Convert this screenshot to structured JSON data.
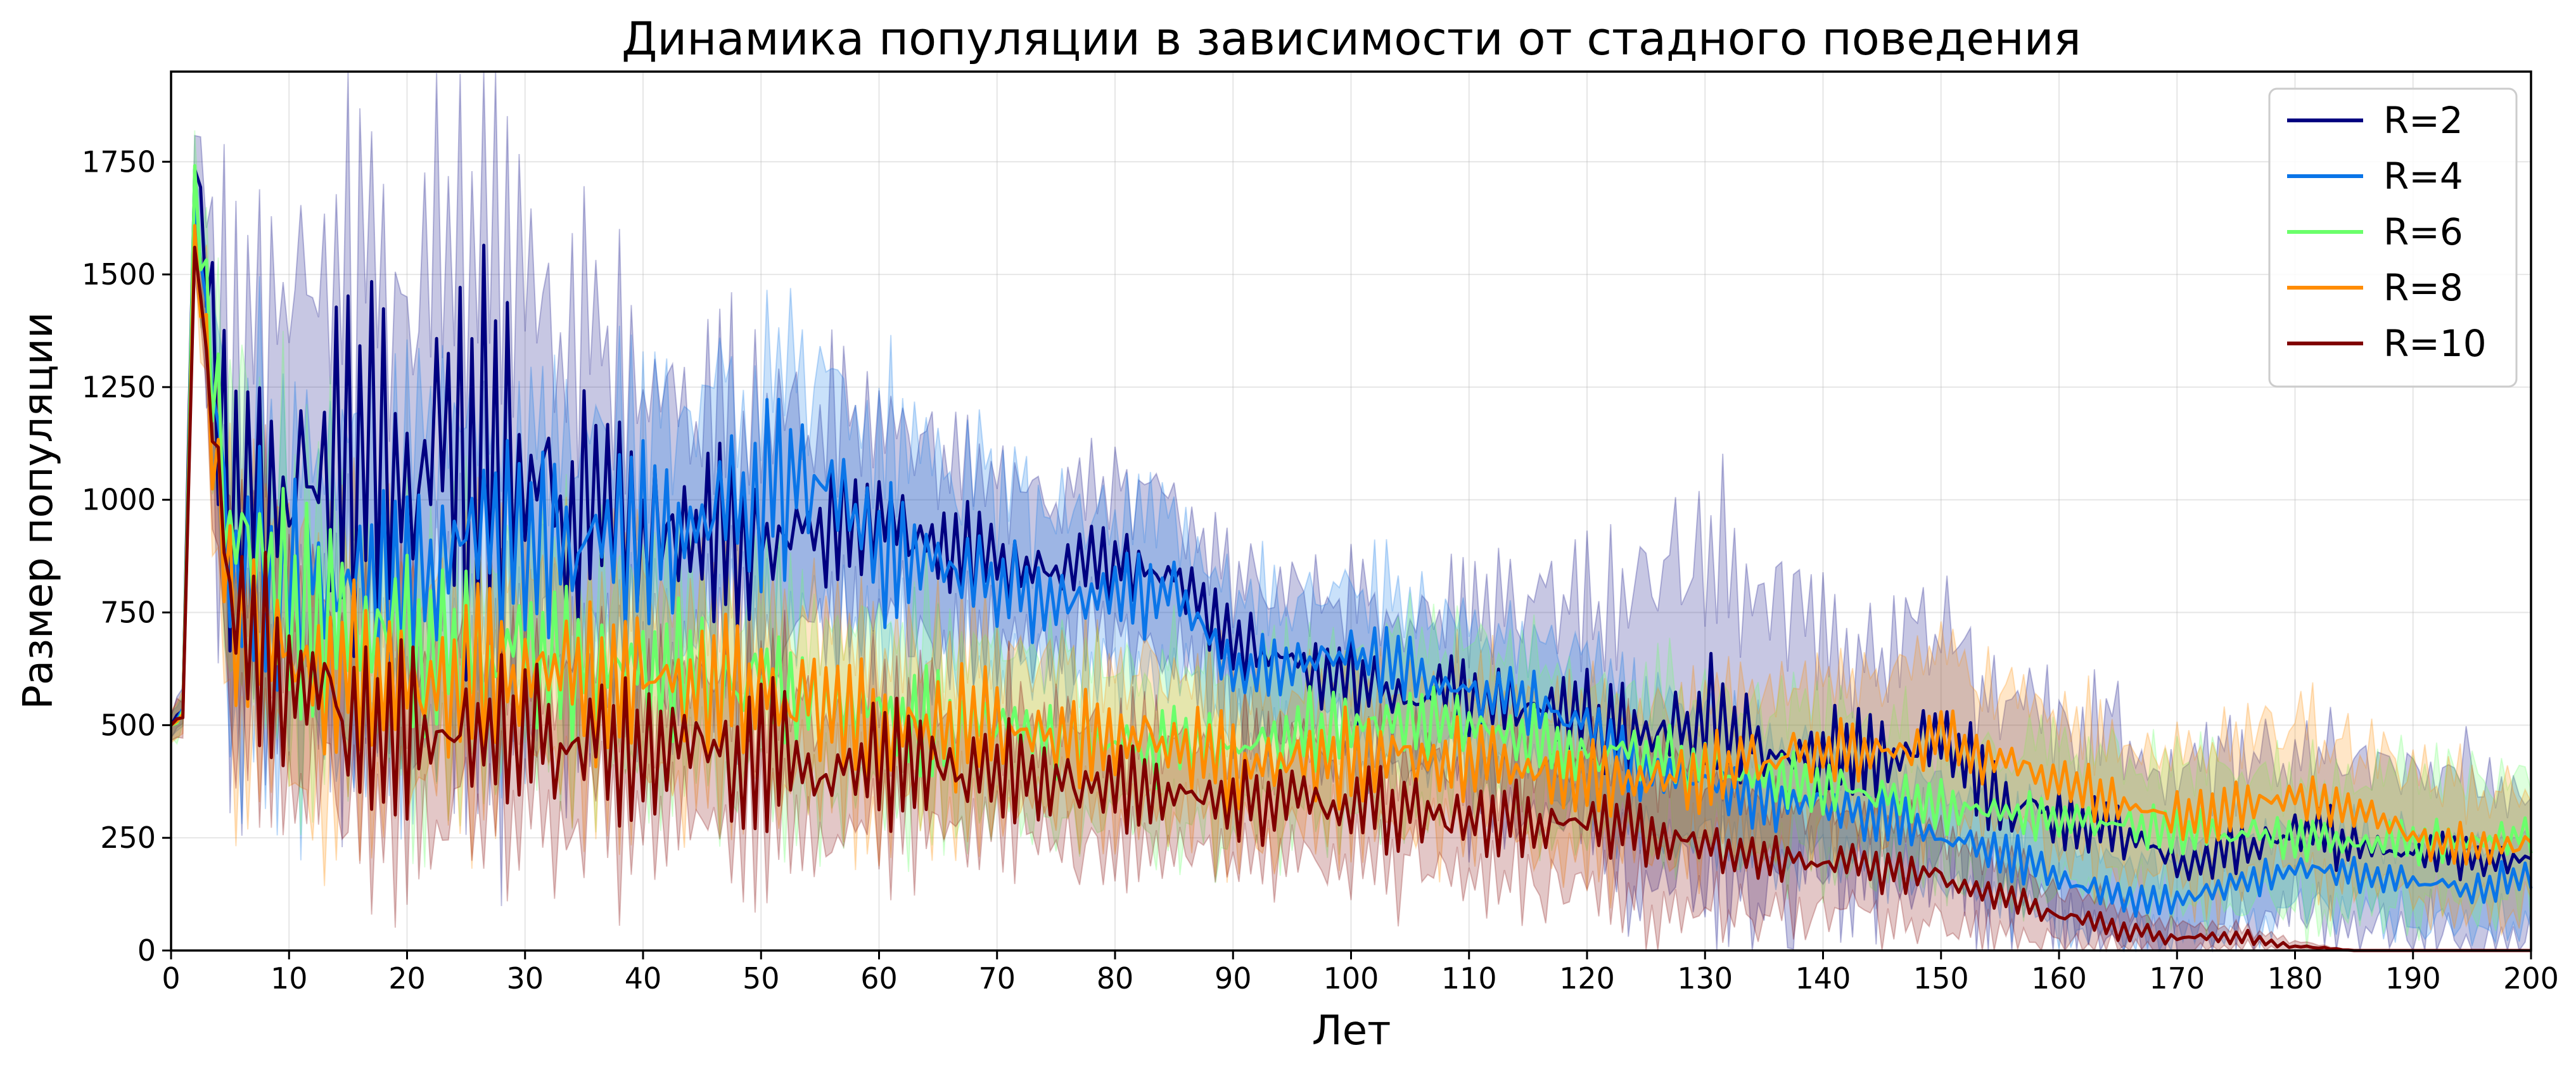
{
  "chart_data": {
    "type": "line",
    "title": "Динамика популяции в зависимости от стадного поведения",
    "xlabel": "Лет",
    "ylabel": "Размер популяции",
    "xlim": [
      0,
      200
    ],
    "ylim": [
      0,
      1950
    ],
    "xticks": [
      0,
      10,
      20,
      30,
      40,
      50,
      60,
      70,
      80,
      90,
      100,
      110,
      120,
      130,
      140,
      150,
      160,
      170,
      180,
      190,
      200
    ],
    "yticks": [
      0,
      250,
      500,
      750,
      1000,
      1250,
      1500,
      1750
    ],
    "grid": true,
    "legend_position": "top-right",
    "shaded_band": "min/max range around each series",
    "x": [
      0,
      1,
      2,
      5,
      10,
      15,
      20,
      25,
      30,
      35,
      40,
      45,
      50,
      55,
      60,
      65,
      70,
      75,
      80,
      85,
      90,
      95,
      100,
      105,
      110,
      115,
      120,
      125,
      130,
      135,
      140,
      145,
      150,
      155,
      160,
      165,
      170,
      175,
      180,
      185,
      190,
      195,
      200
    ],
    "series": [
      {
        "name": "R=2",
        "color": "#000080",
        "values": [
          500,
          540,
          1750,
          1020,
          1010,
          1050,
          1050,
          1070,
          1060,
          980,
          960,
          930,
          910,
          920,
          960,
          900,
          860,
          850,
          860,
          820,
          680,
          640,
          600,
          560,
          560,
          540,
          500,
          460,
          520,
          450,
          440,
          430,
          480,
          320,
          300,
          260,
          200,
          220,
          270,
          230,
          220,
          210,
          200
        ],
        "spread": [
          30,
          40,
          60,
          380,
          380,
          420,
          440,
          460,
          480,
          340,
          310,
          280,
          260,
          240,
          220,
          200,
          180,
          170,
          170,
          160,
          150,
          150,
          160,
          170,
          200,
          220,
          260,
          320,
          380,
          340,
          280,
          250,
          240,
          240,
          230,
          220,
          200,
          200,
          180,
          180,
          170,
          180,
          170
        ],
        "amp": [
          0,
          10,
          30,
          300,
          300,
          330,
          340,
          350,
          360,
          220,
          190,
          160,
          140,
          130,
          110,
          90,
          80,
          70,
          70,
          70,
          70,
          70,
          70,
          70,
          80,
          80,
          90,
          100,
          110,
          90,
          80,
          80,
          80,
          70,
          60,
          50,
          40,
          50,
          60,
          50,
          40,
          40,
          40
        ]
      },
      {
        "name": "R=4",
        "color": "#0a75e8",
        "values": [
          500,
          530,
          1650,
          900,
          800,
          820,
          840,
          880,
          900,
          900,
          920,
          960,
          1000,
          1050,
          900,
          860,
          820,
          780,
          780,
          800,
          620,
          640,
          650,
          620,
          580,
          560,
          500,
          400,
          380,
          330,
          320,
          300,
          260,
          220,
          160,
          120,
          110,
          150,
          180,
          170,
          150,
          140,
          170
        ],
        "spread": [
          30,
          40,
          60,
          300,
          300,
          300,
          280,
          260,
          250,
          240,
          240,
          250,
          260,
          270,
          240,
          220,
          200,
          180,
          170,
          170,
          160,
          150,
          150,
          150,
          150,
          150,
          150,
          140,
          140,
          130,
          120,
          110,
          110,
          100,
          100,
          90,
          90,
          90,
          90,
          90,
          90,
          90,
          90
        ],
        "amp": [
          0,
          10,
          30,
          200,
          190,
          180,
          180,
          180,
          180,
          170,
          160,
          160,
          160,
          150,
          130,
          110,
          90,
          80,
          70,
          70,
          60,
          60,
          60,
          60,
          60,
          60,
          60,
          60,
          60,
          50,
          50,
          50,
          40,
          40,
          40,
          30,
          30,
          30,
          30,
          30,
          30,
          30,
          30
        ]
      },
      {
        "name": "R=6",
        "color": "#6bff6b",
        "values": [
          500,
          520,
          1720,
          900,
          780,
          720,
          680,
          660,
          650,
          640,
          620,
          600,
          580,
          560,
          520,
          500,
          490,
          480,
          460,
          450,
          440,
          480,
          500,
          520,
          500,
          470,
          440,
          430,
          400,
          380,
          360,
          340,
          320,
          310,
          290,
          280,
          270,
          260,
          250,
          250,
          240,
          250,
          260
        ],
        "spread": [
          30,
          40,
          60,
          280,
          260,
          240,
          220,
          210,
          200,
          200,
          190,
          190,
          190,
          190,
          190,
          190,
          180,
          180,
          170,
          170,
          170,
          170,
          170,
          160,
          160,
          160,
          160,
          160,
          160,
          150,
          150,
          150,
          150,
          150,
          150,
          150,
          140,
          150,
          150,
          140,
          140,
          140,
          140
        ],
        "amp": [
          0,
          10,
          30,
          220,
          200,
          180,
          170,
          160,
          150,
          140,
          130,
          120,
          110,
          100,
          100,
          90,
          90,
          80,
          80,
          80,
          70,
          70,
          70,
          70,
          70,
          60,
          60,
          60,
          60,
          50,
          50,
          50,
          50,
          40,
          40,
          40,
          40,
          40,
          40,
          40,
          40,
          40,
          40
        ]
      },
      {
        "name": "R=8",
        "color": "#ff8c00",
        "values": [
          500,
          520,
          1600,
          720,
          640,
          620,
          610,
          600,
          600,
          610,
          610,
          590,
          560,
          530,
          500,
          490,
          490,
          480,
          480,
          470,
          400,
          420,
          430,
          420,
          420,
          400,
          380,
          380,
          400,
          420,
          440,
          450,
          460,
          420,
          370,
          320,
          300,
          320,
          340,
          320,
          260,
          220,
          240
        ],
        "spread": [
          30,
          40,
          60,
          250,
          240,
          230,
          220,
          210,
          200,
          200,
          190,
          190,
          180,
          180,
          170,
          170,
          160,
          160,
          150,
          150,
          150,
          150,
          150,
          150,
          150,
          150,
          150,
          150,
          160,
          160,
          160,
          160,
          160,
          150,
          150,
          140,
          140,
          150,
          160,
          150,
          140,
          130,
          130
        ],
        "amp": [
          0,
          10,
          30,
          180,
          170,
          160,
          160,
          150,
          150,
          140,
          140,
          130,
          120,
          120,
          110,
          110,
          100,
          100,
          90,
          90,
          80,
          80,
          80,
          80,
          80,
          70,
          70,
          70,
          70,
          60,
          60,
          60,
          60,
          60,
          50,
          50,
          50,
          50,
          50,
          40,
          40,
          40,
          40
        ]
      },
      {
        "name": "R=10",
        "color": "#800000",
        "values": [
          500,
          520,
          1560,
          760,
          580,
          520,
          490,
          480,
          470,
          460,
          450,
          440,
          430,
          420,
          410,
          400,
          400,
          380,
          360,
          340,
          340,
          330,
          320,
          310,
          300,
          290,
          280,
          260,
          230,
          210,
          200,
          180,
          160,
          120,
          80,
          50,
          30,
          30,
          10,
          0,
          0,
          0,
          0
        ],
        "spread": [
          30,
          40,
          60,
          220,
          200,
          190,
          180,
          170,
          170,
          160,
          160,
          150,
          150,
          140,
          140,
          140,
          130,
          130,
          120,
          120,
          120,
          120,
          120,
          120,
          120,
          130,
          140,
          160,
          150,
          130,
          120,
          110,
          100,
          80,
          60,
          40,
          30,
          20,
          10,
          0,
          0,
          0,
          0
        ],
        "amp": [
          0,
          10,
          30,
          200,
          180,
          170,
          160,
          150,
          150,
          140,
          140,
          130,
          130,
          120,
          120,
          110,
          100,
          90,
          80,
          80,
          80,
          70,
          70,
          70,
          70,
          60,
          60,
          60,
          50,
          50,
          40,
          40,
          40,
          30,
          30,
          20,
          20,
          15,
          5,
          0,
          0,
          0,
          0
        ]
      }
    ]
  }
}
